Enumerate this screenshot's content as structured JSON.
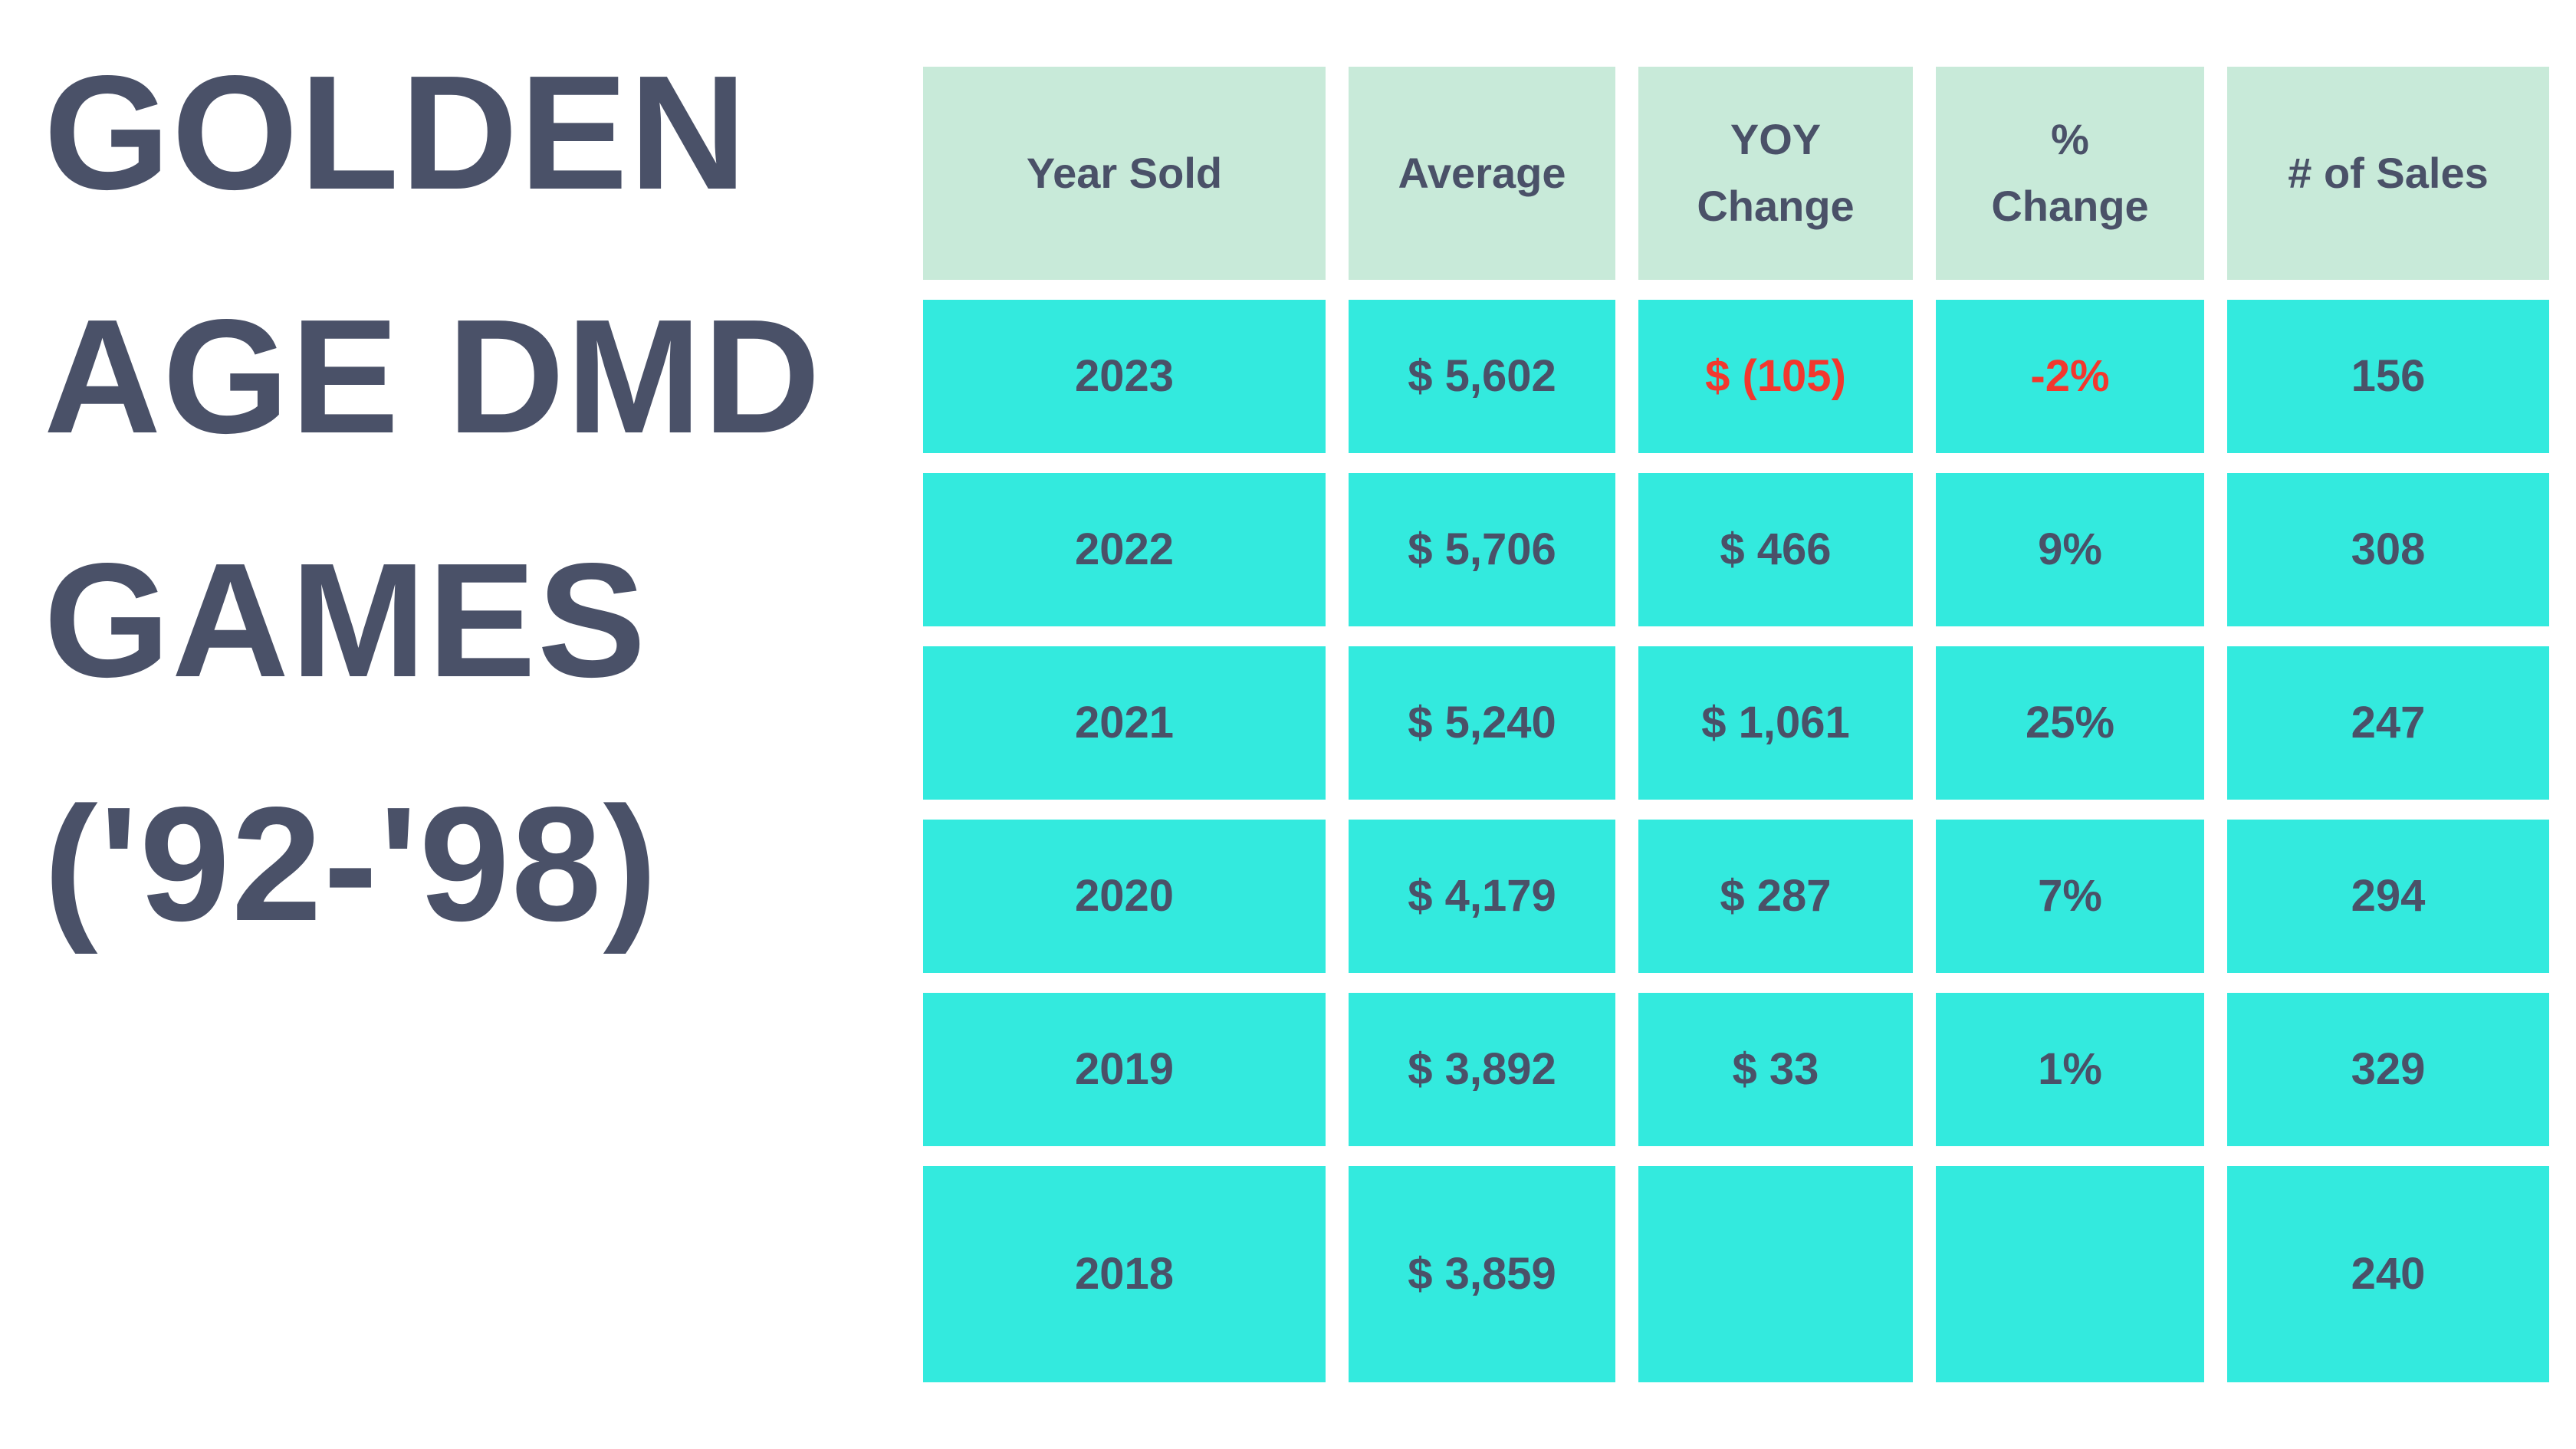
{
  "title": {
    "full": "GOLDEN AGE DMD GAMES ('92-'98)",
    "lines": [
      "GOLDEN",
      "AGE DMD",
      "GAMES",
      "('92-'98)"
    ]
  },
  "colors": {
    "background": "#ffffff",
    "header_cell_bg": "#c8ead9",
    "data_cell_bg": "#33eade",
    "text_dark": "#4a5168",
    "negative_text": "#f2382e"
  },
  "chart_data": {
    "type": "table",
    "title": "GOLDEN AGE DMD GAMES ('92-'98)",
    "columns": [
      "Year Sold",
      "Average",
      "YOY Change",
      "% Change",
      "# of Sales"
    ],
    "rows": [
      [
        "2023",
        "$ 5,602",
        "$ (105)",
        "-2%",
        "156"
      ],
      [
        "2022",
        "$ 5,706",
        "$ 466",
        "9%",
        "308"
      ],
      [
        "2021",
        "$ 5,240",
        "$ 1,061",
        "25%",
        "247"
      ],
      [
        "2020",
        "$ 4,179",
        "$ 287",
        "7%",
        "294"
      ],
      [
        "2019",
        "$ 3,892",
        "$ 33",
        "1%",
        "329"
      ],
      [
        "2018",
        "$ 3,859",
        "",
        "",
        "240"
      ]
    ],
    "numeric": {
      "year": [
        2023,
        2022,
        2021,
        2020,
        2019,
        2018
      ],
      "average_usd": [
        5602,
        5706,
        5240,
        4179,
        3892,
        3859
      ],
      "yoy_change_usd": [
        -105,
        466,
        1061,
        287,
        33,
        null
      ],
      "pct_change_percent": [
        -2,
        9,
        25,
        7,
        1,
        null
      ],
      "num_sales": [
        156,
        308,
        247,
        294,
        329,
        240
      ]
    },
    "legend_position": "none",
    "grid": false,
    "notes": "2023 YOY Change and % Change values shown in red (negative); 2018 YOY Change and % Change cells are blank"
  }
}
